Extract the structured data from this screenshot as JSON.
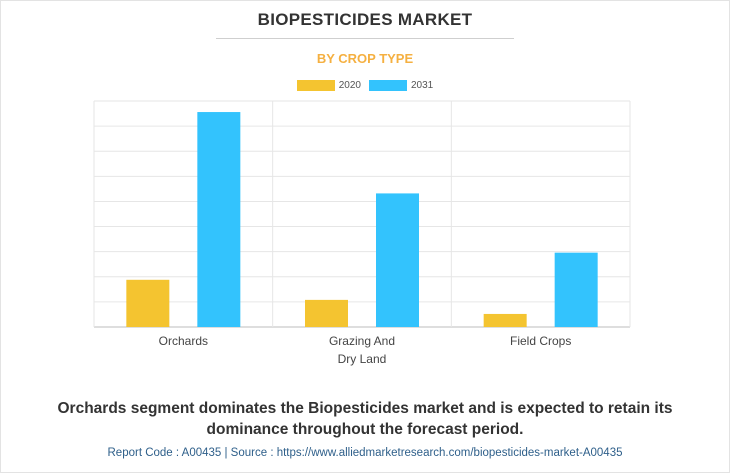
{
  "chart_data": {
    "type": "bar",
    "title": "BIOPESTICIDES MARKET",
    "subtitle": "BY CROP TYPE",
    "categories": [
      "Orchards",
      "Grazing And Dry Land",
      "Field Crops"
    ],
    "category_lines": [
      [
        "Orchards"
      ],
      [
        "Grazing And",
        "Dry Land"
      ],
      [
        "Field Crops"
      ]
    ],
    "series": [
      {
        "name": "2020",
        "color": "#f4c430",
        "values": [
          18.8,
          10.8,
          5.2
        ]
      },
      {
        "name": "2031",
        "color": "#33c3fd",
        "values": [
          85.6,
          53.2,
          29.6
        ]
      }
    ],
    "ylim": [
      0,
      90
    ],
    "y_gridlines": 9,
    "grid": true,
    "legend": "top-center"
  },
  "caption": "Orchards segment dominates the Biopesticides market and is expected to retain its dominance throughout the forecast period.",
  "footer": "Report Code : A00435  |  Source : https://www.alliedmarketresearch.com/biopesticides-market-A00435"
}
